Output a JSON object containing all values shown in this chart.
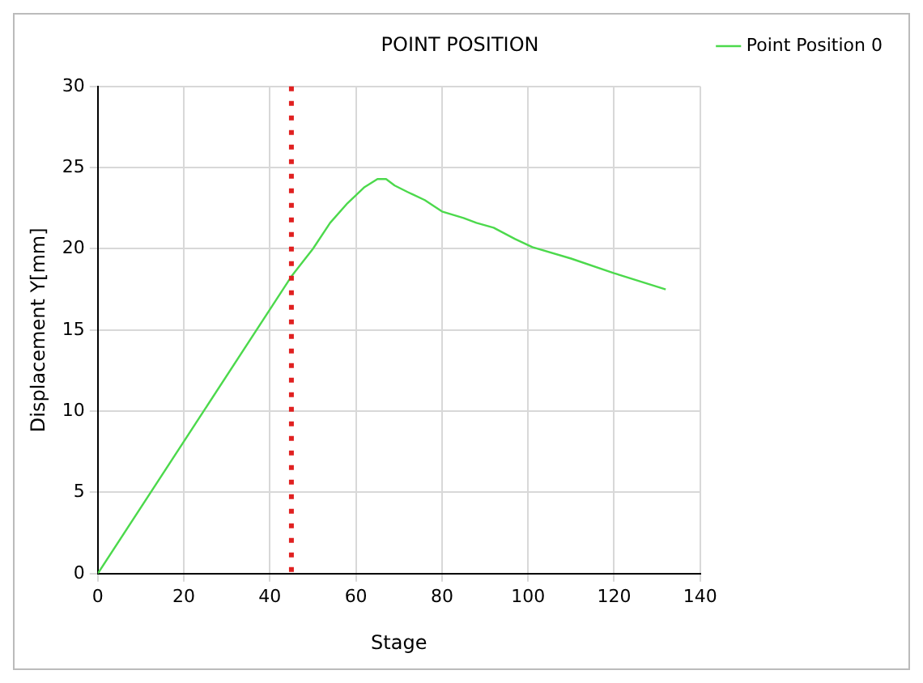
{
  "chart_data": {
    "type": "line",
    "title": "POINT POSITION",
    "xlabel": "Stage",
    "ylabel": "Displacement Y[mm]",
    "x": [
      0,
      45,
      50,
      54,
      58,
      62,
      65,
      67,
      69,
      72,
      76,
      80,
      85,
      88,
      92,
      97,
      101,
      110,
      120,
      132
    ],
    "series": [
      {
        "name": "Point Position 0",
        "color": "#4cd94c",
        "values": [
          0,
          18.3,
          20,
          21.6,
          22.8,
          23.8,
          24.3,
          24.3,
          23.9,
          23.5,
          23,
          22.3,
          21.9,
          21.6,
          21.3,
          20.6,
          20.1,
          19.4,
          18.5,
          17.5
        ]
      }
    ],
    "xlim": [
      0,
      140
    ],
    "xticks": [
      0,
      20,
      40,
      60,
      80,
      100,
      120,
      140
    ],
    "ylim": [
      0,
      30
    ],
    "yticks": [
      0,
      5,
      10,
      15,
      20,
      25,
      30
    ],
    "ref_lines": [
      {
        "axis": "x",
        "value": 45,
        "color": "#e02020",
        "line_style": "dotted"
      }
    ],
    "grid": true,
    "legend": "top right",
    "marker": "none",
    "line_style": "solid"
  }
}
